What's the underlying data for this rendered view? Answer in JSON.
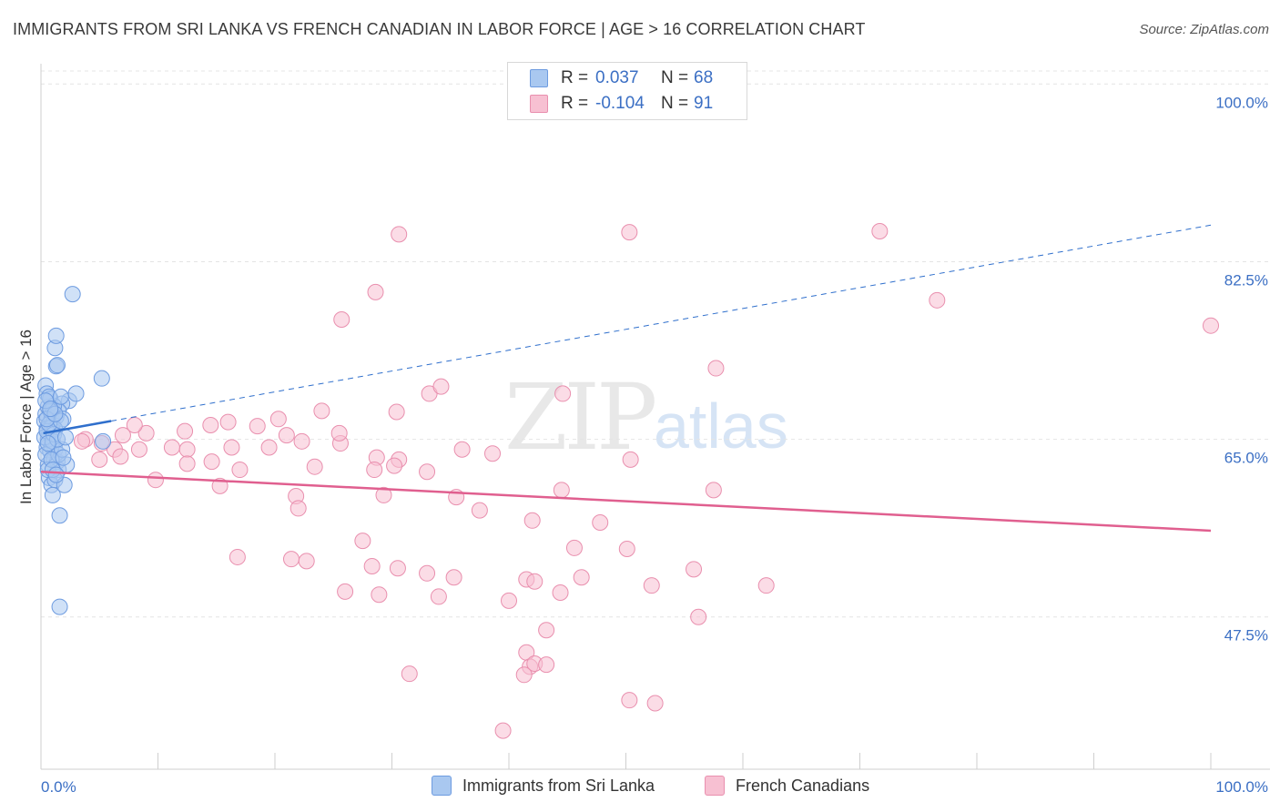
{
  "title": "IMMIGRANTS FROM SRI LANKA VS FRENCH CANADIAN IN LABOR FORCE | AGE > 16 CORRELATION CHART",
  "source": "Source: ZipAtlas.com",
  "watermark": {
    "zip": "ZIP",
    "atlas": "atlas"
  },
  "legend": {
    "rows": [
      {
        "r_label": "R =",
        "r_value": "0.037",
        "n_label": "N =",
        "n_value": "68",
        "color": "#a9c8f0",
        "border": "#6d9be0"
      },
      {
        "r_label": "R =",
        "r_value": "-0.104",
        "n_label": "N =",
        "n_value": "91",
        "color": "#f7c0d2",
        "border": "#e98fae"
      }
    ]
  },
  "bottom_legend": [
    {
      "label": "Immigrants from Sri Lanka",
      "color": "#a9c8f0",
      "border": "#6d9be0"
    },
    {
      "label": "French Canadians",
      "color": "#f7c0d2",
      "border": "#e98fae"
    }
  ],
  "chart_data": {
    "type": "scatter",
    "title": "IMMIGRANTS FROM SRI LANKA VS FRENCH CANADIAN IN LABOR FORCE | AGE > 16 CORRELATION CHART",
    "xlabel": "",
    "ylabel": "In Labor Force | Age > 16",
    "xlim": [
      0,
      100
    ],
    "ylim": [
      32.5,
      102
    ],
    "x_tick_labels": {
      "left": "0.0%",
      "right": "100.0%"
    },
    "y_ticks": [
      {
        "value": 100.0,
        "label": "100.0%"
      },
      {
        "value": 82.5,
        "label": "82.5%"
      },
      {
        "value": 65.0,
        "label": "65.0%"
      },
      {
        "value": 47.5,
        "label": "47.5%"
      }
    ],
    "series": [
      {
        "name": "Immigrants from Sri Lanka",
        "color": "#a9c8f0",
        "stroke": "#6d9be0",
        "trend": {
          "x0": 0.2,
          "y0": 65.6,
          "x1": 6.0,
          "y1": 66.8,
          "dash_x1": 100,
          "dash_y1": 86.1,
          "color": "#2f6fcc"
        },
        "points": [
          [
            0.3,
            66.8
          ],
          [
            0.4,
            67.5
          ],
          [
            0.5,
            66.0
          ],
          [
            0.6,
            68.2
          ],
          [
            0.7,
            65.5
          ],
          [
            0.5,
            64.2
          ],
          [
            0.8,
            63.8
          ],
          [
            0.9,
            67.0
          ],
          [
            1.0,
            66.5
          ],
          [
            0.6,
            62.5
          ],
          [
            0.7,
            61.2
          ],
          [
            0.9,
            60.5
          ],
          [
            1.1,
            63.0
          ],
          [
            1.2,
            64.0
          ],
          [
            0.4,
            70.3
          ],
          [
            0.5,
            69.5
          ],
          [
            0.8,
            69.0
          ],
          [
            1.0,
            68.0
          ],
          [
            1.3,
            67.2
          ],
          [
            0.6,
            65.0
          ],
          [
            0.9,
            64.3
          ],
          [
            1.4,
            62.8
          ],
          [
            1.5,
            62.0
          ],
          [
            1.2,
            61.0
          ],
          [
            1.0,
            59.5
          ],
          [
            1.6,
            57.5
          ],
          [
            2.0,
            60.5
          ],
          [
            2.4,
            68.8
          ],
          [
            1.8,
            68.5
          ],
          [
            1.5,
            67.8
          ],
          [
            1.3,
            72.2
          ],
          [
            1.2,
            74.0
          ],
          [
            1.3,
            75.2
          ],
          [
            1.4,
            72.3
          ],
          [
            1.1,
            68.3
          ],
          [
            0.7,
            69.2
          ],
          [
            0.9,
            66.2
          ],
          [
            0.3,
            65.2
          ],
          [
            0.4,
            63.5
          ],
          [
            2.7,
            79.3
          ],
          [
            5.2,
            71.0
          ],
          [
            3.0,
            69.5
          ],
          [
            1.7,
            69.2
          ],
          [
            1.9,
            67.0
          ],
          [
            2.2,
            62.5
          ],
          [
            5.3,
            64.8
          ],
          [
            1.6,
            48.5
          ],
          [
            0.8,
            67.8
          ],
          [
            1.2,
            66.0
          ],
          [
            0.5,
            65.8
          ],
          [
            1.0,
            64.8
          ],
          [
            1.5,
            63.5
          ],
          [
            0.6,
            62.0
          ],
          [
            1.8,
            64.0
          ],
          [
            1.1,
            65.5
          ],
          [
            0.7,
            66.5
          ],
          [
            0.4,
            68.8
          ],
          [
            1.4,
            65.0
          ],
          [
            0.9,
            63.0
          ],
          [
            1.7,
            66.8
          ],
          [
            0.5,
            67.0
          ],
          [
            1.2,
            67.5
          ],
          [
            0.8,
            68.0
          ],
          [
            1.0,
            62.0
          ],
          [
            0.6,
            64.6
          ],
          [
            1.3,
            61.5
          ],
          [
            1.9,
            63.2
          ],
          [
            2.1,
            65.2
          ]
        ]
      },
      {
        "name": "French Canadians",
        "color": "#f7c0d2",
        "stroke": "#e98fae",
        "trend": {
          "x0": 0,
          "y0": 61.8,
          "x1": 100,
          "y1": 56.0,
          "color": "#e05f8f"
        },
        "points": [
          [
            30.6,
            85.2
          ],
          [
            50.3,
            85.4
          ],
          [
            71.7,
            85.5
          ],
          [
            28.6,
            79.5
          ],
          [
            25.7,
            76.8
          ],
          [
            76.6,
            78.7
          ],
          [
            100.0,
            76.2
          ],
          [
            57.7,
            72.0
          ],
          [
            33.2,
            69.5
          ],
          [
            34.2,
            70.2
          ],
          [
            44.6,
            69.5
          ],
          [
            30.4,
            67.7
          ],
          [
            24.0,
            67.8
          ],
          [
            16.0,
            66.7
          ],
          [
            14.5,
            66.4
          ],
          [
            20.3,
            67.0
          ],
          [
            12.3,
            65.8
          ],
          [
            9.0,
            65.6
          ],
          [
            8.0,
            66.4
          ],
          [
            7.0,
            65.4
          ],
          [
            5.2,
            64.6
          ],
          [
            6.3,
            64.0
          ],
          [
            3.8,
            65.0
          ],
          [
            3.5,
            64.8
          ],
          [
            11.2,
            64.2
          ],
          [
            8.4,
            64.0
          ],
          [
            12.5,
            64.0
          ],
          [
            16.3,
            64.2
          ],
          [
            19.5,
            64.2
          ],
          [
            21.0,
            65.4
          ],
          [
            22.3,
            64.8
          ],
          [
            25.6,
            64.6
          ],
          [
            28.7,
            63.2
          ],
          [
            36.0,
            64.0
          ],
          [
            38.6,
            63.6
          ],
          [
            50.4,
            63.0
          ],
          [
            30.6,
            63.0
          ],
          [
            12.5,
            62.6
          ],
          [
            14.6,
            62.8
          ],
          [
            17.0,
            62.0
          ],
          [
            9.8,
            61.0
          ],
          [
            5.0,
            63.0
          ],
          [
            6.8,
            63.3
          ],
          [
            23.4,
            62.3
          ],
          [
            28.5,
            62.0
          ],
          [
            33.0,
            61.8
          ],
          [
            15.3,
            60.4
          ],
          [
            29.3,
            59.5
          ],
          [
            21.8,
            59.4
          ],
          [
            22.0,
            58.2
          ],
          [
            35.5,
            59.3
          ],
          [
            37.5,
            58.0
          ],
          [
            44.5,
            60.0
          ],
          [
            42.0,
            57.0
          ],
          [
            27.5,
            55.0
          ],
          [
            45.6,
            54.3
          ],
          [
            50.1,
            54.2
          ],
          [
            16.8,
            53.4
          ],
          [
            21.4,
            53.2
          ],
          [
            22.7,
            53.0
          ],
          [
            28.3,
            52.5
          ],
          [
            30.5,
            52.3
          ],
          [
            33.0,
            51.8
          ],
          [
            35.3,
            51.4
          ],
          [
            41.5,
            51.2
          ],
          [
            42.2,
            51.0
          ],
          [
            46.2,
            51.4
          ],
          [
            52.2,
            50.6
          ],
          [
            26.0,
            50.0
          ],
          [
            28.9,
            49.7
          ],
          [
            34.0,
            49.5
          ],
          [
            40.0,
            49.1
          ],
          [
            44.4,
            49.9
          ],
          [
            43.2,
            46.2
          ],
          [
            41.5,
            44.0
          ],
          [
            41.8,
            42.6
          ],
          [
            42.2,
            42.9
          ],
          [
            43.2,
            42.8
          ],
          [
            41.3,
            41.8
          ],
          [
            31.5,
            41.9
          ],
          [
            50.3,
            39.3
          ],
          [
            52.5,
            39.0
          ],
          [
            39.5,
            36.3
          ],
          [
            56.2,
            47.5
          ],
          [
            62.0,
            50.6
          ],
          [
            55.8,
            52.2
          ],
          [
            47.8,
            56.8
          ],
          [
            57.5,
            60.0
          ],
          [
            30.2,
            62.4
          ],
          [
            25.5,
            65.6
          ],
          [
            18.5,
            66.3
          ]
        ]
      }
    ]
  }
}
